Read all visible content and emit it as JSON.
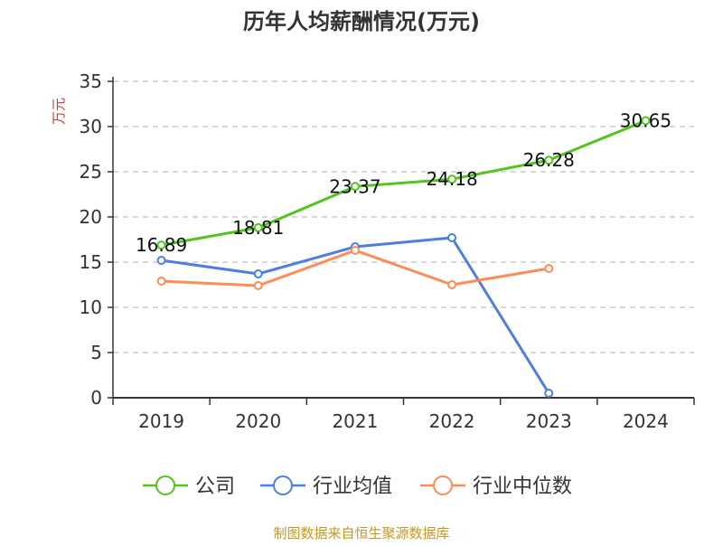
{
  "chart_data": {
    "type": "line",
    "title": "历年人均薪酬情况(万元)",
    "ylabel": "万元",
    "xlabel": "",
    "categories": [
      "2019",
      "2020",
      "2021",
      "2022",
      "2023",
      "2024"
    ],
    "ylim": [
      0,
      35
    ],
    "yticks": [
      0,
      5,
      10,
      15,
      20,
      25,
      30,
      35
    ],
    "grid": true,
    "legend_position": "bottom",
    "series": [
      {
        "name": "公司",
        "color": "#52c41a",
        "values": [
          16.89,
          18.81,
          23.37,
          24.18,
          26.28,
          30.65
        ],
        "labels": [
          "16.89",
          "18.81",
          "23.37",
          "24.18",
          "26.28",
          "30.65"
        ]
      },
      {
        "name": "行业均值",
        "color": "#4e7fe0",
        "values": [
          15.2,
          13.7,
          16.7,
          17.7,
          0.5,
          null
        ]
      },
      {
        "name": "行业中位数",
        "color": "#ff8c57",
        "values": [
          12.9,
          12.4,
          16.3,
          12.5,
          14.3,
          null
        ]
      }
    ]
  },
  "source": "制图数据来自恒生聚源数据库"
}
